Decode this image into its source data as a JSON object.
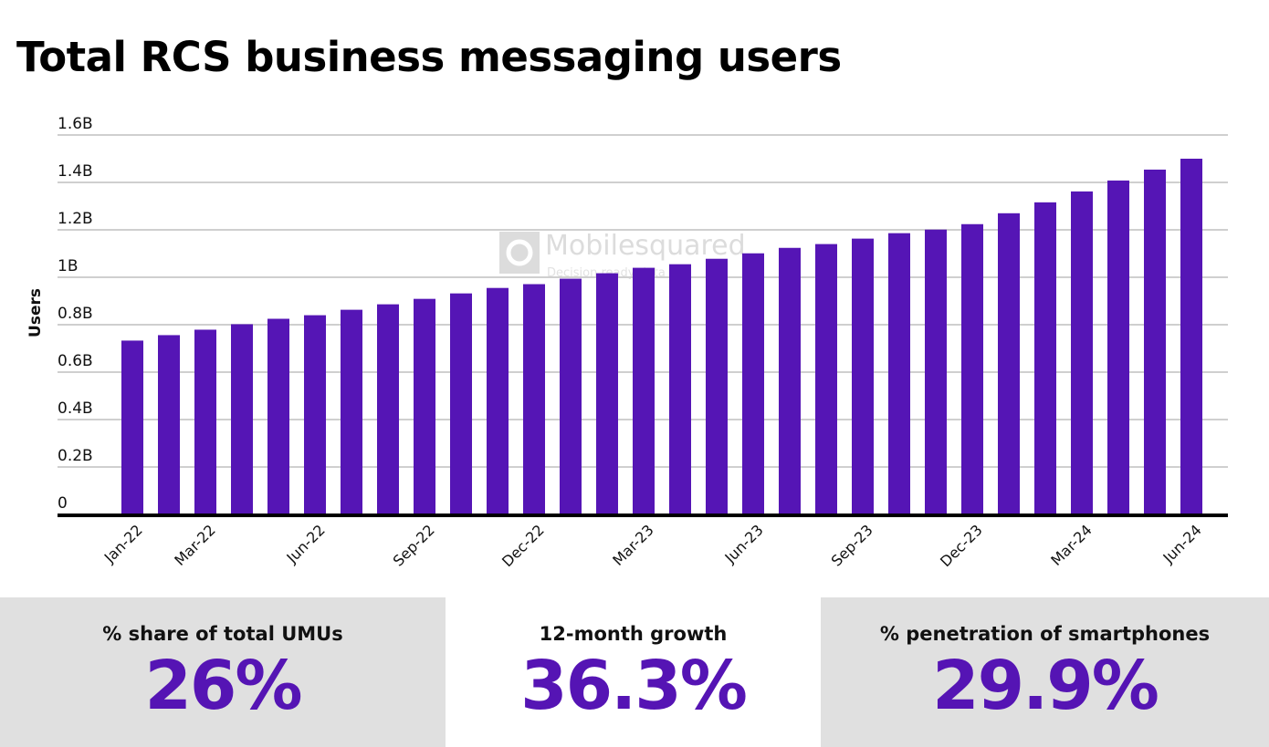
{
  "chart_data": {
    "type": "bar",
    "title": "Total RCS business messaging users",
    "ylabel": "Users",
    "xlabel": "",
    "ylim": [
      0,
      1.6
    ],
    "y_unit": "B",
    "yticks": [
      "0",
      "0.2B",
      "0.4B",
      "0.6B",
      "0.8B",
      "1B",
      "1.2B",
      "1.4B",
      "1.6B"
    ],
    "grid": true,
    "bar_color": "#5515b5",
    "categories": [
      "Jan-22",
      "Feb-22",
      "Mar-22",
      "Apr-22",
      "May-22",
      "Jun-22",
      "Jul-22",
      "Aug-22",
      "Sep-22",
      "Oct-22",
      "Nov-22",
      "Dec-22",
      "Jan-23",
      "Feb-23",
      "Mar-23",
      "Apr-23",
      "May-23",
      "Jun-23",
      "Jul-23",
      "Aug-23",
      "Sep-23",
      "Oct-23",
      "Nov-23",
      "Dec-23",
      "Jan-24",
      "Feb-24",
      "Mar-24",
      "Apr-24",
      "May-24",
      "Jun-24"
    ],
    "xtick_labels": [
      "Jan-22",
      "Mar-22",
      "Jun-22",
      "Sep-22",
      "Dec-22",
      "Mar-23",
      "Jun-23",
      "Sep-23",
      "Dec-23",
      "Mar-24",
      "Jun-24"
    ],
    "values": [
      0.733,
      0.756,
      0.779,
      0.802,
      0.825,
      0.84,
      0.863,
      0.886,
      0.909,
      0.932,
      0.955,
      0.971,
      0.994,
      1.017,
      1.04,
      1.055,
      1.078,
      1.101,
      1.124,
      1.14,
      1.163,
      1.186,
      1.201,
      1.224,
      1.27,
      1.316,
      1.362,
      1.408,
      1.454,
      1.5
    ],
    "watermark": "Mobilesquared Decision ready data"
  },
  "stats": [
    {
      "label": "% share of total UMUs",
      "value": "26%"
    },
    {
      "label": "12-month growth",
      "value": "36.3%"
    },
    {
      "label": "% penetration of smartphones",
      "value": "29.9%"
    }
  ],
  "colors": {
    "accent": "#5514b4",
    "panel_gray": "#e0e0e0"
  }
}
